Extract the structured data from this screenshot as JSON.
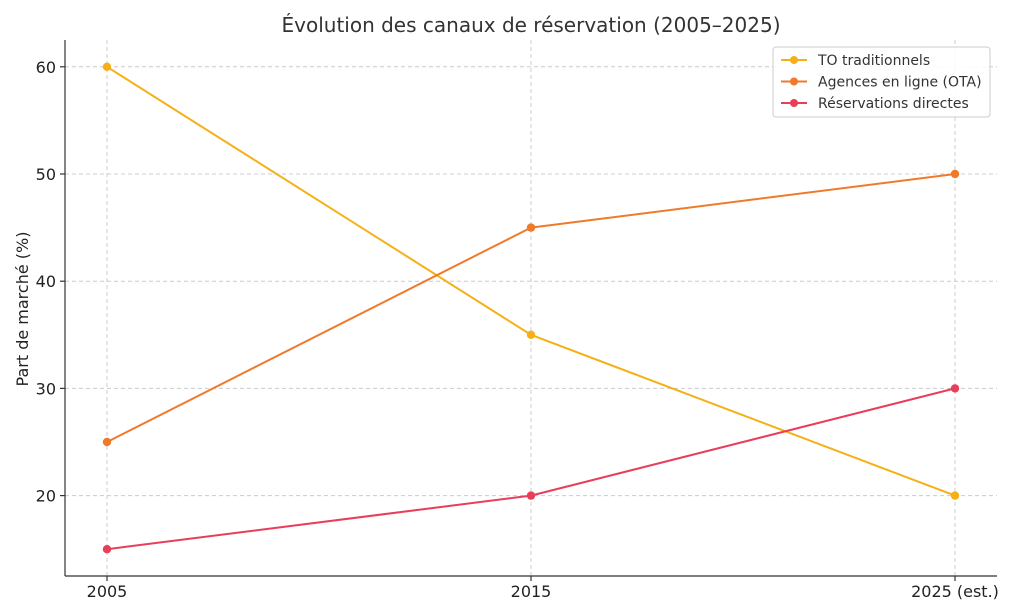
{
  "chart_data": {
    "type": "line",
    "title": "Évolution des canaux de réservation (2005–2025)",
    "xlabel": "",
    "ylabel": "Part de marché (%)",
    "categories": [
      "2005",
      "2015",
      "2025 (est.)"
    ],
    "yticks": [
      20,
      30,
      40,
      50,
      60
    ],
    "ylim": [
      12.5,
      62.5
    ],
    "grid": true,
    "legend_position": "top-right",
    "series": [
      {
        "name": "TO traditionnels",
        "color": "#f5b018",
        "values": [
          60,
          35,
          20
        ]
      },
      {
        "name": "Agences en ligne (OTA)",
        "color": "#f07a2a",
        "values": [
          25,
          45,
          50
        ]
      },
      {
        "name": "Réservations directes",
        "color": "#e83e5a",
        "values": [
          15,
          20,
          30
        ]
      }
    ]
  }
}
